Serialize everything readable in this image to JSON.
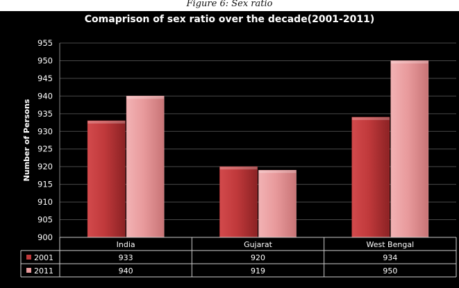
{
  "caption": "Figure 6: Sex ratio",
  "colors": {
    "series_2001": "#c0393b",
    "series_2011": "#e89a9c",
    "background": "#000000",
    "grid": "#4a4a4a"
  },
  "chart_data": {
    "type": "bar",
    "title": "Comaprison of sex ratio over the decade(2001-2011)",
    "ylabel": "Number of Persons",
    "xlabel": "",
    "categories": [
      "India",
      "Gujarat",
      "West Bengal"
    ],
    "series": [
      {
        "name": "2001",
        "values": [
          933,
          920,
          934
        ]
      },
      {
        "name": "2011",
        "values": [
          940,
          919,
          950
        ]
      }
    ],
    "ylim": [
      900,
      955
    ],
    "yticks": [
      900,
      905,
      910,
      915,
      920,
      925,
      930,
      935,
      940,
      945,
      950,
      955
    ],
    "grid": true,
    "legend": "data-table"
  }
}
